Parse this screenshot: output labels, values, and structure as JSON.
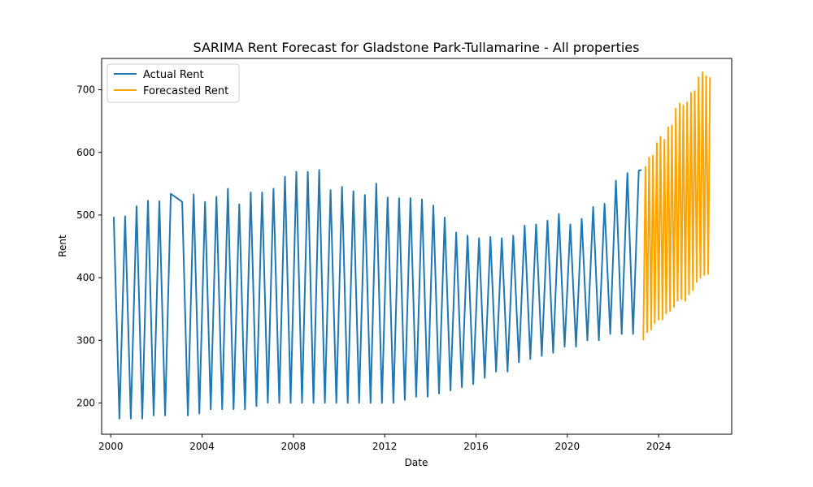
{
  "chart_data": {
    "type": "line",
    "title": "SARIMA Rent Forecast for Gladstone Park-Tullamarine - All properties",
    "xlabel": "Date",
    "ylabel": "Rent",
    "xlim": [
      1999.6,
      2027.2
    ],
    "ylim": [
      150,
      750
    ],
    "x_ticks": [
      2000,
      2004,
      2008,
      2012,
      2016,
      2020,
      2024
    ],
    "x_tick_labels": [
      "2000",
      "2004",
      "2008",
      "2012",
      "2016",
      "2020",
      "2024"
    ],
    "y_ticks": [
      200,
      300,
      400,
      500,
      600,
      700
    ],
    "y_tick_labels": [
      "200",
      "300",
      "400",
      "500",
      "600",
      "700"
    ],
    "grid": false,
    "legend_position": "upper-left",
    "series": [
      {
        "name": "Actual Rent",
        "color": "#1f77b4",
        "x": [
          2000.13,
          2000.38,
          2000.63,
          2000.88,
          2001.13,
          2001.38,
          2001.63,
          2001.88,
          2002.13,
          2002.38,
          2002.63,
          2003.13,
          2003.38,
          2003.63,
          2003.88,
          2004.13,
          2004.38,
          2004.63,
          2004.88,
          2005.13,
          2005.38,
          2005.63,
          2005.88,
          2006.13,
          2006.38,
          2006.63,
          2006.88,
          2007.13,
          2007.38,
          2007.63,
          2007.88,
          2008.13,
          2008.38,
          2008.63,
          2008.88,
          2009.13,
          2009.38,
          2009.63,
          2009.88,
          2010.13,
          2010.38,
          2010.63,
          2010.88,
          2011.13,
          2011.38,
          2011.63,
          2011.88,
          2012.13,
          2012.38,
          2012.63,
          2012.88,
          2013.13,
          2013.38,
          2013.63,
          2013.88,
          2014.13,
          2014.38,
          2014.63,
          2014.88,
          2015.13,
          2015.38,
          2015.63,
          2015.88,
          2016.13,
          2016.38,
          2016.63,
          2016.88,
          2017.13,
          2017.38,
          2017.63,
          2017.88,
          2018.13,
          2018.38,
          2018.63,
          2018.88,
          2019.13,
          2019.38,
          2019.63,
          2019.88,
          2020.13,
          2020.38,
          2020.63,
          2020.88,
          2021.13,
          2021.38,
          2021.63,
          2021.88,
          2022.13,
          2022.38,
          2022.63,
          2022.88,
          2023.13,
          2023.25
        ],
        "values": [
          497,
          175,
          498,
          175,
          514,
          175,
          523,
          180,
          522,
          180,
          534,
          521,
          180,
          533,
          183,
          521,
          190,
          529,
          190,
          542,
          190,
          517,
          190,
          536,
          195,
          536,
          200,
          542,
          200,
          561,
          200,
          569,
          200,
          569,
          200,
          572,
          200,
          540,
          200,
          545,
          200,
          538,
          200,
          532,
          200,
          550,
          200,
          528,
          200,
          527,
          205,
          527,
          210,
          525,
          210,
          515,
          215,
          496,
          220,
          472,
          225,
          467,
          230,
          463,
          240,
          465,
          250,
          463,
          250,
          467,
          265,
          483,
          270,
          485,
          275,
          491,
          280,
          502,
          290,
          485,
          290,
          494,
          300,
          513,
          300,
          518,
          310,
          555,
          310,
          567,
          310,
          571,
          572
        ]
      },
      {
        "name": "Forecasted Rent",
        "color": "#ffa500",
        "x": [
          2023.33,
          2023.42,
          2023.5,
          2023.58,
          2023.67,
          2023.75,
          2023.83,
          2023.92,
          2024.0,
          2024.08,
          2024.17,
          2024.25,
          2024.33,
          2024.42,
          2024.5,
          2024.58,
          2024.67,
          2024.75,
          2024.83,
          2024.92,
          2025.0,
          2025.08,
          2025.17,
          2025.25,
          2025.33,
          2025.42,
          2025.5,
          2025.58,
          2025.67,
          2025.75,
          2025.83,
          2025.92,
          2026.0,
          2026.08,
          2026.17,
          2026.25
        ],
        "values": [
          300,
          577,
          313,
          592,
          317,
          595,
          327,
          615,
          333,
          625,
          333,
          620,
          343,
          640,
          347,
          643,
          353,
          670,
          363,
          678,
          366,
          675,
          363,
          680,
          373,
          695,
          380,
          698,
          393,
          720,
          400,
          728,
          404,
          722,
          406,
          720
        ]
      }
    ]
  }
}
